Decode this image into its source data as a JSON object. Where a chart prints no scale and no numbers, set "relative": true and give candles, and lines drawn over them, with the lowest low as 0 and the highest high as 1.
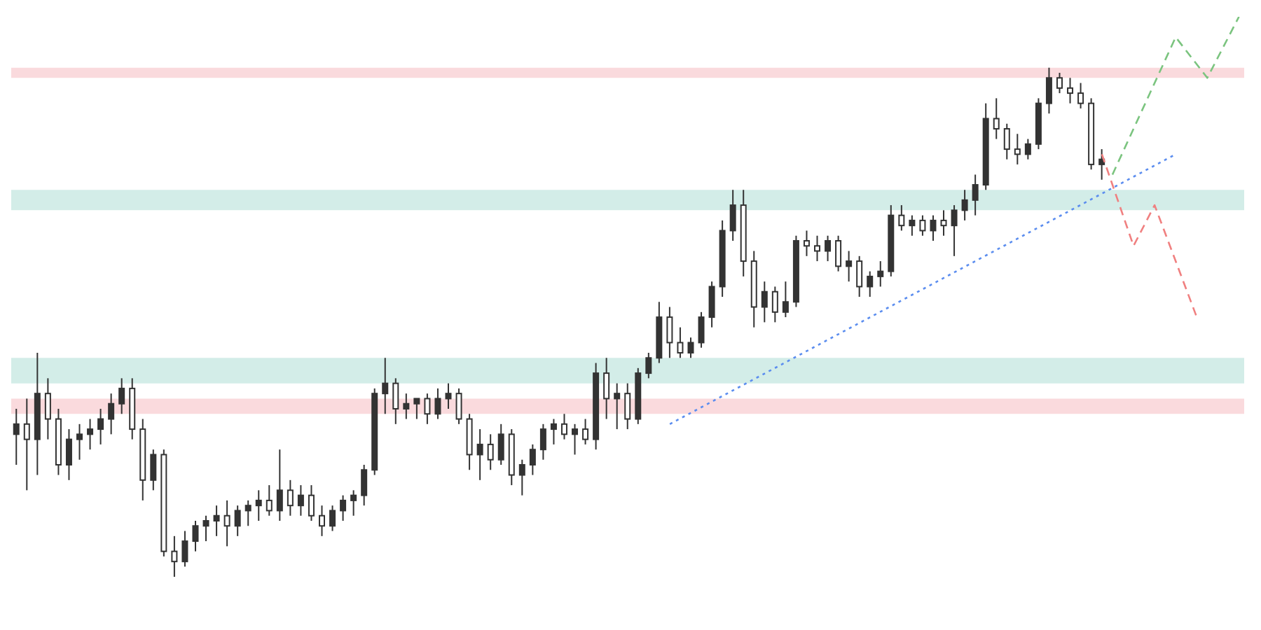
{
  "chart_data": {
    "type": "candlestick",
    "relative": true,
    "color": "#333333",
    "categories": [
      null,
      null,
      null,
      null,
      null,
      null,
      null,
      null,
      null,
      null,
      null,
      null,
      null,
      null,
      null,
      null,
      null,
      null,
      null,
      null,
      null,
      null,
      null,
      null,
      null,
      null,
      null,
      null,
      null,
      null,
      null,
      null,
      null,
      null,
      null,
      null,
      null,
      null,
      null,
      null,
      null,
      null,
      null,
      null,
      null,
      null,
      null,
      null,
      null,
      null,
      null,
      null,
      null,
      null,
      null,
      null,
      null,
      null,
      null,
      null,
      null,
      null,
      null,
      null,
      null,
      null,
      null,
      null,
      null,
      null,
      null,
      null,
      null,
      null,
      null,
      null,
      null,
      null,
      null,
      null,
      null,
      null,
      null,
      null,
      null,
      null,
      null,
      null,
      null,
      null,
      null,
      null,
      null,
      null,
      null,
      null,
      null,
      null,
      null,
      null,
      null,
      null,
      null,
      null,
      null,
      null,
      null,
      null,
      null,
      null,
      null,
      null,
      null,
      null,
      null,
      null,
      null
    ],
    "ohlc": [
      [
        0.28,
        0.33,
        0.22,
        0.3
      ],
      [
        0.3,
        0.35,
        0.17,
        0.27
      ],
      [
        0.27,
        0.44,
        0.2,
        0.36
      ],
      [
        0.36,
        0.39,
        0.27,
        0.31
      ],
      [
        0.31,
        0.33,
        0.2,
        0.22
      ],
      [
        0.22,
        0.29,
        0.19,
        0.27
      ],
      [
        0.27,
        0.3,
        0.23,
        0.28
      ],
      [
        0.28,
        0.31,
        0.25,
        0.29
      ],
      [
        0.29,
        0.33,
        0.26,
        0.31
      ],
      [
        0.31,
        0.36,
        0.28,
        0.34
      ],
      [
        0.34,
        0.39,
        0.32,
        0.37
      ],
      [
        0.37,
        0.39,
        0.27,
        0.29
      ],
      [
        0.29,
        0.31,
        0.15,
        0.19
      ],
      [
        0.19,
        0.25,
        0.17,
        0.24
      ],
      [
        0.24,
        0.25,
        0.04,
        0.05
      ],
      [
        0.05,
        0.08,
        0.0,
        0.03
      ],
      [
        0.03,
        0.09,
        0.02,
        0.07
      ],
      [
        0.07,
        0.11,
        0.05,
        0.1
      ],
      [
        0.1,
        0.12,
        0.07,
        0.11
      ],
      [
        0.11,
        0.14,
        0.08,
        0.12
      ],
      [
        0.12,
        0.15,
        0.06,
        0.1
      ],
      [
        0.1,
        0.14,
        0.08,
        0.13
      ],
      [
        0.13,
        0.15,
        0.1,
        0.14
      ],
      [
        0.14,
        0.17,
        0.11,
        0.15
      ],
      [
        0.15,
        0.18,
        0.12,
        0.13
      ],
      [
        0.13,
        0.25,
        0.11,
        0.17
      ],
      [
        0.17,
        0.19,
        0.12,
        0.14
      ],
      [
        0.14,
        0.18,
        0.12,
        0.16
      ],
      [
        0.16,
        0.18,
        0.11,
        0.12
      ],
      [
        0.12,
        0.14,
        0.08,
        0.1
      ],
      [
        0.1,
        0.14,
        0.09,
        0.13
      ],
      [
        0.13,
        0.16,
        0.11,
        0.15
      ],
      [
        0.15,
        0.17,
        0.12,
        0.16
      ],
      [
        0.16,
        0.22,
        0.14,
        0.21
      ],
      [
        0.21,
        0.37,
        0.2,
        0.36
      ],
      [
        0.36,
        0.43,
        0.32,
        0.38
      ],
      [
        0.38,
        0.39,
        0.3,
        0.33
      ],
      [
        0.33,
        0.36,
        0.31,
        0.34
      ],
      [
        0.34,
        0.35,
        0.31,
        0.35
      ],
      [
        0.35,
        0.36,
        0.3,
        0.32
      ],
      [
        0.32,
        0.37,
        0.31,
        0.35
      ],
      [
        0.35,
        0.38,
        0.33,
        0.36
      ],
      [
        0.36,
        0.37,
        0.3,
        0.31
      ],
      [
        0.31,
        0.32,
        0.21,
        0.24
      ],
      [
        0.24,
        0.29,
        0.19,
        0.26
      ],
      [
        0.26,
        0.28,
        0.21,
        0.23
      ],
      [
        0.23,
        0.3,
        0.22,
        0.28
      ],
      [
        0.28,
        0.29,
        0.18,
        0.2
      ],
      [
        0.2,
        0.23,
        0.16,
        0.22
      ],
      [
        0.22,
        0.26,
        0.2,
        0.25
      ],
      [
        0.25,
        0.3,
        0.23,
        0.29
      ],
      [
        0.29,
        0.31,
        0.26,
        0.3
      ],
      [
        0.3,
        0.32,
        0.27,
        0.28
      ],
      [
        0.28,
        0.3,
        0.24,
        0.29
      ],
      [
        0.29,
        0.31,
        0.26,
        0.27
      ],
      [
        0.27,
        0.42,
        0.25,
        0.4
      ],
      [
        0.4,
        0.43,
        0.31,
        0.35
      ],
      [
        0.35,
        0.38,
        0.29,
        0.36
      ],
      [
        0.36,
        0.38,
        0.29,
        0.31
      ],
      [
        0.31,
        0.41,
        0.3,
        0.4
      ],
      [
        0.4,
        0.44,
        0.39,
        0.43
      ],
      [
        0.43,
        0.54,
        0.42,
        0.51
      ],
      [
        0.51,
        0.53,
        0.43,
        0.46
      ],
      [
        0.46,
        0.49,
        0.43,
        0.44
      ],
      [
        0.44,
        0.47,
        0.43,
        0.46
      ],
      [
        0.46,
        0.52,
        0.45,
        0.51
      ],
      [
        0.51,
        0.58,
        0.49,
        0.57
      ],
      [
        0.57,
        0.7,
        0.55,
        0.68
      ],
      [
        0.68,
        0.76,
        0.66,
        0.73
      ],
      [
        0.73,
        0.76,
        0.59,
        0.62
      ],
      [
        0.62,
        0.64,
        0.49,
        0.53
      ],
      [
        0.53,
        0.58,
        0.5,
        0.56
      ],
      [
        0.56,
        0.57,
        0.5,
        0.52
      ],
      [
        0.52,
        0.58,
        0.51,
        0.54
      ],
      [
        0.54,
        0.67,
        0.53,
        0.66
      ],
      [
        0.66,
        0.68,
        0.63,
        0.65
      ],
      [
        0.65,
        0.67,
        0.62,
        0.64
      ],
      [
        0.64,
        0.67,
        0.62,
        0.66
      ],
      [
        0.66,
        0.67,
        0.6,
        0.61
      ],
      [
        0.61,
        0.64,
        0.58,
        0.62
      ],
      [
        0.62,
        0.63,
        0.55,
        0.57
      ],
      [
        0.57,
        0.6,
        0.55,
        0.59
      ],
      [
        0.59,
        0.62,
        0.57,
        0.6
      ],
      [
        0.6,
        0.73,
        0.59,
        0.71
      ],
      [
        0.71,
        0.73,
        0.68,
        0.69
      ],
      [
        0.69,
        0.71,
        0.67,
        0.7
      ],
      [
        0.7,
        0.71,
        0.67,
        0.68
      ],
      [
        0.68,
        0.71,
        0.66,
        0.7
      ],
      [
        0.7,
        0.72,
        0.67,
        0.69
      ],
      [
        0.69,
        0.73,
        0.63,
        0.72
      ],
      [
        0.72,
        0.76,
        0.7,
        0.74
      ],
      [
        0.74,
        0.79,
        0.71,
        0.77
      ],
      [
        0.77,
        0.93,
        0.76,
        0.9
      ],
      [
        0.9,
        0.94,
        0.86,
        0.88
      ],
      [
        0.88,
        0.89,
        0.82,
        0.84
      ],
      [
        0.84,
        0.87,
        0.81,
        0.83
      ],
      [
        0.83,
        0.86,
        0.82,
        0.85
      ],
      [
        0.85,
        0.94,
        0.84,
        0.93
      ],
      [
        0.93,
        1.0,
        0.91,
        0.98
      ],
      [
        0.98,
        0.99,
        0.95,
        0.96
      ],
      [
        0.96,
        0.98,
        0.93,
        0.95
      ],
      [
        0.95,
        0.97,
        0.92,
        0.93
      ],
      [
        0.93,
        0.94,
        0.8,
        0.81
      ],
      [
        0.81,
        0.84,
        0.78,
        0.82
      ],
      null,
      null,
      null,
      null,
      null,
      null,
      null,
      null,
      null,
      null,
      null,
      null,
      null
    ],
    "series": [
      {
        "type": "line",
        "color": "#5b8def",
        "line_style": "dotted",
        "values": [
          null,
          null,
          null,
          null,
          null,
          null,
          null,
          null,
          null,
          null,
          null,
          null,
          null,
          null,
          null,
          null,
          null,
          null,
          null,
          null,
          null,
          null,
          null,
          null,
          null,
          null,
          null,
          null,
          null,
          null,
          null,
          null,
          null,
          null,
          null,
          null,
          null,
          null,
          null,
          null,
          null,
          null,
          null,
          null,
          null,
          null,
          null,
          null,
          null,
          null,
          null,
          null,
          null,
          null,
          null,
          null,
          null,
          null,
          null,
          null,
          null,
          null,
          0.3,
          null,
          null,
          null,
          null,
          null,
          null,
          null,
          null,
          null,
          null,
          null,
          null,
          null,
          null,
          null,
          null,
          null,
          null,
          null,
          null,
          null,
          null,
          null,
          null,
          null,
          null,
          null,
          null,
          null,
          null,
          null,
          null,
          null,
          null,
          null,
          null,
          null,
          null,
          null,
          null,
          null,
          null,
          null,
          null,
          null,
          null,
          null,
          0.83,
          null,
          null,
          null,
          null,
          null,
          null
        ]
      },
      {
        "type": "line",
        "color": "#7bc47f",
        "line_style": "dashed",
        "values": [
          null,
          null,
          null,
          null,
          null,
          null,
          null,
          null,
          null,
          null,
          null,
          null,
          null,
          null,
          null,
          null,
          null,
          null,
          null,
          null,
          null,
          null,
          null,
          null,
          null,
          null,
          null,
          null,
          null,
          null,
          null,
          null,
          null,
          null,
          null,
          null,
          null,
          null,
          null,
          null,
          null,
          null,
          null,
          null,
          null,
          null,
          null,
          null,
          null,
          null,
          null,
          null,
          null,
          null,
          null,
          null,
          null,
          null,
          null,
          null,
          null,
          null,
          null,
          null,
          null,
          null,
          null,
          null,
          null,
          null,
          null,
          null,
          null,
          null,
          null,
          null,
          null,
          null,
          null,
          null,
          null,
          null,
          null,
          null,
          null,
          null,
          null,
          null,
          null,
          null,
          null,
          null,
          null,
          null,
          null,
          null,
          null,
          null,
          null,
          null,
          null,
          null,
          null,
          null,
          0.79,
          null,
          null,
          null,
          null,
          null,
          1.06,
          null,
          null,
          0.98,
          null,
          null,
          1.1
        ]
      },
      {
        "type": "line",
        "color": "#f08080",
        "line_style": "dashed",
        "values": [
          null,
          null,
          null,
          null,
          null,
          null,
          null,
          null,
          null,
          null,
          null,
          null,
          null,
          null,
          null,
          null,
          null,
          null,
          null,
          null,
          null,
          null,
          null,
          null,
          null,
          null,
          null,
          null,
          null,
          null,
          null,
          null,
          null,
          null,
          null,
          null,
          null,
          null,
          null,
          null,
          null,
          null,
          null,
          null,
          null,
          null,
          null,
          null,
          null,
          null,
          null,
          null,
          null,
          null,
          null,
          null,
          null,
          null,
          null,
          null,
          null,
          null,
          null,
          null,
          null,
          null,
          null,
          null,
          null,
          null,
          null,
          null,
          null,
          null,
          null,
          null,
          null,
          null,
          null,
          null,
          null,
          null,
          null,
          null,
          null,
          null,
          null,
          null,
          null,
          null,
          null,
          null,
          null,
          null,
          null,
          null,
          null,
          null,
          null,
          null,
          null,
          null,
          null,
          0.83,
          null,
          null,
          0.65,
          null,
          0.73,
          null,
          null,
          null,
          0.51,
          null,
          null,
          null,
          null
        ]
      }
    ],
    "bands": [
      {
        "axis": "y",
        "from": 0.38,
        "to": 0.43,
        "color": "#d3ede8"
      },
      {
        "axis": "y",
        "from": 0.72,
        "to": 0.76,
        "color": "#d3ede8"
      },
      {
        "axis": "y",
        "from": 0.98,
        "to": 1.0,
        "color": "#fadadd"
      },
      {
        "axis": "y",
        "from": 0.32,
        "to": 0.35,
        "color": "#fadadd"
      }
    ]
  }
}
